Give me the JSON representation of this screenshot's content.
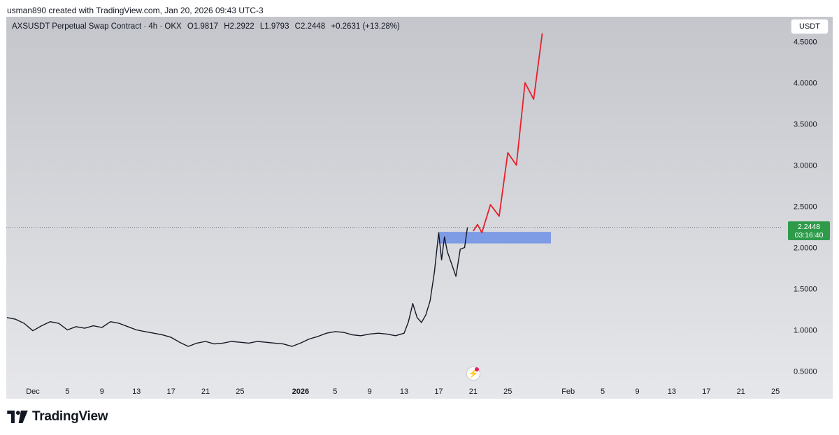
{
  "credit": "usman890 created with TradingView.com, Jan 20, 2026 09:43 UTC-3",
  "symbol": {
    "name": "AXSUSDT Perpetual Swap Contract · 4h · OKX",
    "open": "O1.9817",
    "high": "H2.2922",
    "low": "L1.9793",
    "close": "C2.2448",
    "change": "+0.2631 (+13.28%)"
  },
  "currency_button": "USDT",
  "last_price": {
    "value": "2.2448",
    "countdown": "03:16:40",
    "color": "#2e9b4a"
  },
  "footer": {
    "brand": "TradingView"
  },
  "icons": {
    "alert": "lightning-alert-icon",
    "logo": "tradingview-logo-icon"
  },
  "colors": {
    "price_line": "#131722",
    "projection": "#e8202a",
    "zone": "#6f8fe8",
    "background_top": "#c4c6cc",
    "background_bottom": "#e6e7ea"
  },
  "chart_data": {
    "type": "line",
    "y_scale": "linear",
    "ylim": [
      0.25,
      4.75
    ],
    "y_ticks": [
      "4.5000",
      "4.0000",
      "3.5000",
      "3.0000",
      "2.5000",
      "2.0000",
      "1.5000",
      "1.0000",
      "0.5000"
    ],
    "y_tick_values": [
      4.5,
      4.0,
      3.5,
      3.0,
      2.5,
      2.0,
      1.5,
      1.0,
      0.5
    ],
    "x_ticks": [
      {
        "label": "Dec",
        "date": "2025-12-01"
      },
      {
        "label": "5",
        "date": "2025-12-05"
      },
      {
        "label": "9",
        "date": "2025-12-09"
      },
      {
        "label": "13",
        "date": "2025-12-13"
      },
      {
        "label": "17",
        "date": "2025-12-17"
      },
      {
        "label": "21",
        "date": "2025-12-21"
      },
      {
        "label": "25",
        "date": "2025-12-25"
      },
      {
        "label": "2026",
        "date": "2026-01-01",
        "bold": true
      },
      {
        "label": "5",
        "date": "2026-01-05"
      },
      {
        "label": "9",
        "date": "2026-01-09"
      },
      {
        "label": "13",
        "date": "2026-01-13"
      },
      {
        "label": "17",
        "date": "2026-01-17"
      },
      {
        "label": "21",
        "date": "2026-01-21"
      },
      {
        "label": "25",
        "date": "2026-01-25"
      },
      {
        "label": "Feb",
        "date": "2026-02-01"
      },
      {
        "label": "5",
        "date": "2026-02-05"
      },
      {
        "label": "9",
        "date": "2026-02-09"
      },
      {
        "label": "13",
        "date": "2026-02-13"
      },
      {
        "label": "17",
        "date": "2026-02-17"
      },
      {
        "label": "21",
        "date": "2026-02-21"
      },
      {
        "label": "25",
        "date": "2026-02-25"
      }
    ],
    "series": [
      {
        "values": [
          [
            "2025-11-28",
            1.15
          ],
          [
            "2025-11-29",
            1.13
          ],
          [
            "2025-11-30",
            1.08
          ],
          [
            "2025-12-01",
            0.99
          ],
          [
            "2025-12-02",
            1.05
          ],
          [
            "2025-12-03",
            1.1
          ],
          [
            "2025-12-04",
            1.08
          ],
          [
            "2025-12-05",
            1.0
          ],
          [
            "2025-12-06",
            1.04
          ],
          [
            "2025-12-07",
            1.02
          ],
          [
            "2025-12-08",
            1.05
          ],
          [
            "2025-12-09",
            1.03
          ],
          [
            "2025-12-10",
            1.1
          ],
          [
            "2025-12-11",
            1.08
          ],
          [
            "2025-12-12",
            1.04
          ],
          [
            "2025-12-13",
            1.0
          ],
          [
            "2025-12-14",
            0.98
          ],
          [
            "2025-12-15",
            0.96
          ],
          [
            "2025-12-16",
            0.94
          ],
          [
            "2025-12-17",
            0.91
          ],
          [
            "2025-12-18",
            0.85
          ],
          [
            "2025-12-19",
            0.8
          ],
          [
            "2025-12-20",
            0.84
          ],
          [
            "2025-12-21",
            0.86
          ],
          [
            "2025-12-22",
            0.83
          ],
          [
            "2025-12-23",
            0.84
          ],
          [
            "2025-12-24",
            0.86
          ],
          [
            "2025-12-25",
            0.85
          ],
          [
            "2025-12-26",
            0.84
          ],
          [
            "2025-12-27",
            0.86
          ],
          [
            "2025-12-28",
            0.85
          ],
          [
            "2025-12-29",
            0.84
          ],
          [
            "2025-12-30",
            0.83
          ],
          [
            "2025-12-31",
            0.8
          ],
          [
            "2026-01-01",
            0.84
          ],
          [
            "2026-01-02",
            0.89
          ],
          [
            "2026-01-03",
            0.92
          ],
          [
            "2026-01-04",
            0.96
          ],
          [
            "2026-01-05",
            0.98
          ],
          [
            "2026-01-06",
            0.97
          ],
          [
            "2026-01-07",
            0.94
          ],
          [
            "2026-01-08",
            0.93
          ],
          [
            "2026-01-09",
            0.95
          ],
          [
            "2026-01-10",
            0.96
          ],
          [
            "2026-01-11",
            0.95
          ],
          [
            "2026-01-12",
            0.93
          ],
          [
            "2026-01-13",
            0.96
          ],
          [
            "2026-01-13T12:00",
            1.1
          ],
          [
            "2026-01-14",
            1.32
          ],
          [
            "2026-01-14T12:00",
            1.15
          ],
          [
            "2026-01-15",
            1.09
          ],
          [
            "2026-01-15T12:00",
            1.18
          ],
          [
            "2026-01-16",
            1.35
          ],
          [
            "2026-01-16T12:00",
            1.7
          ],
          [
            "2026-01-17",
            2.18
          ],
          [
            "2026-01-17T08:00",
            1.85
          ],
          [
            "2026-01-17T16:00",
            2.13
          ],
          [
            "2026-01-18",
            1.95
          ],
          [
            "2026-01-18T12:00",
            1.8
          ],
          [
            "2026-01-19",
            1.65
          ],
          [
            "2026-01-19T12:00",
            1.98
          ],
          [
            "2026-01-20",
            2.0
          ],
          [
            "2026-01-20T08:00",
            2.2448
          ]
        ]
      },
      {
        "values": [
          [
            "2026-01-21",
            2.2
          ],
          [
            "2026-01-21T12:00",
            2.28
          ],
          [
            "2026-01-22",
            2.18
          ],
          [
            "2026-01-23",
            2.52
          ],
          [
            "2026-01-24",
            2.38
          ],
          [
            "2026-01-25",
            3.15
          ],
          [
            "2026-01-26",
            3.0
          ],
          [
            "2026-01-27",
            4.0
          ],
          [
            "2026-01-28",
            3.8
          ],
          [
            "2026-01-29",
            4.6
          ]
        ]
      }
    ],
    "zone": {
      "x_start": "2026-01-17",
      "x_end": "2026-01-30",
      "y_low": 2.05,
      "y_high": 2.19
    },
    "current_price": 2.2448,
    "grid": false,
    "title": "",
    "xlabel": "",
    "ylabel": ""
  }
}
